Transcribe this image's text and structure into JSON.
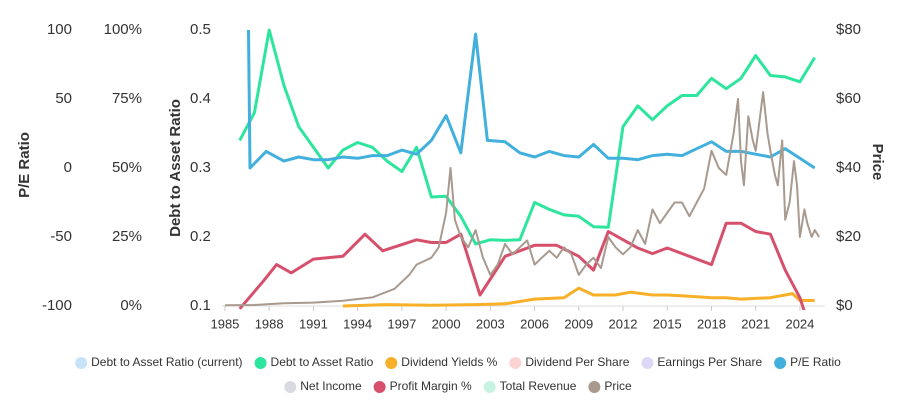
{
  "chart_data": {
    "type": "line",
    "xlim": [
      1984.8,
      2025.7
    ],
    "xticks": [
      1985,
      1988,
      1991,
      1994,
      1997,
      2000,
      2003,
      2006,
      2009,
      2012,
      2015,
      2018,
      2021,
      2024
    ],
    "y_axes": {
      "pe": {
        "title": "P/E Ratio",
        "ylim": [
          -100,
          100
        ],
        "yticks": [
          -100,
          -50,
          0,
          50,
          100
        ]
      },
      "percent": {
        "ylim": [
          0,
          100
        ],
        "yticks": [
          {
            "value": 0,
            "label": "0%"
          },
          {
            "value": 25,
            "label": "25%"
          },
          {
            "value": 50,
            "label": "50%"
          },
          {
            "value": 75,
            "label": "75%"
          },
          {
            "value": 100,
            "label": "100%"
          }
        ]
      },
      "debt": {
        "title": "Debt to Asset Ratio",
        "ylim": [
          0.1,
          0.5
        ],
        "yticks": [
          0.1,
          0.2,
          0.3,
          0.4,
          0.5
        ]
      },
      "price": {
        "title": "Price",
        "ylim": [
          0,
          80
        ],
        "yticks": [
          {
            "value": 0,
            "label": "$0"
          },
          {
            "value": 20,
            "label": "$20"
          },
          {
            "value": 40,
            "label": "$40"
          },
          {
            "value": 60,
            "label": "$60"
          },
          {
            "value": 80,
            "label": "$80"
          }
        ]
      }
    },
    "series": [
      {
        "name": "Debt to Asset Ratio (current)",
        "color": "#c6e3f7",
        "hidden": true
      },
      {
        "name": "Debt to Asset Ratio",
        "color": "#2ee59d",
        "axis": "debt",
        "x": [
          1986,
          1987,
          1988,
          1989,
          1990,
          1991,
          1992,
          1993,
          1994,
          1995,
          1996,
          1997,
          1998,
          1999,
          2000,
          2001,
          2002,
          2003,
          2004,
          2005,
          2006,
          2007,
          2008,
          2009,
          2010,
          2011,
          2012,
          2013,
          2014,
          2015,
          2016,
          2017,
          2018,
          2019,
          2020,
          2021,
          2022,
          2023,
          2024,
          2025
        ],
        "values": [
          0.34,
          0.38,
          0.5,
          0.42,
          0.36,
          0.33,
          0.3,
          0.326,
          0.337,
          0.33,
          0.31,
          0.295,
          0.33,
          0.258,
          0.259,
          0.23,
          0.19,
          0.196,
          0.195,
          0.196,
          0.25,
          0.24,
          0.232,
          0.23,
          0.215,
          0.214,
          0.36,
          0.39,
          0.37,
          0.39,
          0.405,
          0.405,
          0.43,
          0.415,
          0.43,
          0.463,
          0.434,
          0.432,
          0.425,
          0.46
        ]
      },
      {
        "name": "Dividend Yields %",
        "color": "#f7b027",
        "axis": "percent",
        "x": [
          1993,
          1996,
          1999,
          2002,
          2004,
          2006,
          2008,
          2009,
          2010,
          2011.5,
          2012.5,
          2014,
          2015,
          2016.5,
          2018,
          2019,
          2020,
          2022,
          2023.5,
          2024,
          2025
        ],
        "values": [
          0,
          0.5,
          0.3,
          0.5,
          0.8,
          2.5,
          3,
          6.5,
          4,
          4,
          5,
          4,
          4,
          3.5,
          3,
          3,
          2.5,
          3,
          4.5,
          2,
          2
        ]
      },
      {
        "name": "Dividend Per Share",
        "color": "#fbd3d3",
        "hidden": true
      },
      {
        "name": "Earnings Per Share",
        "color": "#ddd8f3",
        "hidden": true
      },
      {
        "name": "P/E Ratio",
        "color": "#42b0dd",
        "axis": "pe",
        "x": [
          1986.6,
          1986.7,
          1987.8,
          1989,
          1990,
          1991,
          1992,
          1993,
          1994,
          1995,
          1996,
          1997,
          1998,
          1999,
          2000,
          2001,
          2002,
          2002.8,
          2004,
          2005,
          2006,
          2007,
          2008,
          2009,
          2010,
          2011,
          2012,
          2013,
          2014,
          2015,
          2016,
          2017,
          2018,
          2019,
          2020,
          2021,
          2022,
          2023,
          2024,
          2025
        ],
        "values": [
          100,
          0,
          12,
          5,
          8,
          6,
          6,
          8,
          7,
          9,
          9,
          13,
          10,
          20,
          38,
          11,
          97,
          20,
          19,
          11,
          8,
          12,
          9,
          8,
          17,
          7,
          7,
          6,
          9,
          10,
          9,
          14,
          19,
          12,
          12,
          10,
          8,
          14,
          7,
          0
        ]
      },
      {
        "name": "Net Income",
        "color": "#d7dbe0",
        "hidden": true
      },
      {
        "name": "Profit Margin %",
        "color": "#d6506c",
        "axis": "percent",
        "x": [
          1986,
          1987.6,
          1988.5,
          1989.5,
          1991,
          1993,
          1994.5,
          1995.7,
          1998,
          1999,
          2000,
          2001,
          2002.3,
          2004,
          2006,
          2007.5,
          2009,
          2010,
          2011,
          2013,
          2014,
          2015,
          2016.5,
          2018,
          2019,
          2020,
          2021,
          2022,
          2023,
          2024,
          2024.3
        ],
        "values": [
          -1,
          9,
          15,
          12,
          17,
          18,
          26,
          20,
          24,
          23,
          23,
          26,
          4,
          18,
          22,
          22,
          18,
          13,
          27,
          21,
          19,
          21,
          18,
          15,
          30,
          30,
          27,
          26,
          13,
          3,
          -2
        ]
      },
      {
        "name": "Total Revenue",
        "color": "#c8f3e3",
        "hidden": true
      },
      {
        "name": "Price",
        "color": "#a89a8e",
        "axis": "price",
        "x": [
          1985,
          1987,
          1989,
          1991,
          1993,
          1995,
          1996.5,
          1997.5,
          1998,
          1999,
          1999.5,
          2000,
          2000.3,
          2000.6,
          2001,
          2001.5,
          2002,
          2002.5,
          2003,
          2003.5,
          2004,
          2004.5,
          2005,
          2005.5,
          2006,
          2006.5,
          2007,
          2007.5,
          2008,
          2008.5,
          2009,
          2009.5,
          2010,
          2010.5,
          2011,
          2011.5,
          2012,
          2012.5,
          2013,
          2013.5,
          2014,
          2014.5,
          2015,
          2015.5,
          2016,
          2016.5,
          2017,
          2017.5,
          2018,
          2018.5,
          2019,
          2019.5,
          2019.8,
          2020,
          2020.2,
          2020.5,
          2020.8,
          2021,
          2021.3,
          2021.5,
          2021.8,
          2022,
          2022.3,
          2022.5,
          2022.8,
          2023,
          2023.3,
          2023.6,
          2023.8,
          2024,
          2024.3,
          2024.5,
          2024.8,
          2025,
          2025.3
        ],
        "values": [
          0.2,
          0.3,
          0.8,
          1,
          1.5,
          2.5,
          5,
          9,
          12,
          14,
          17,
          27,
          40,
          25,
          20,
          17,
          22,
          14,
          9,
          12,
          18,
          15,
          17,
          19,
          12,
          14,
          16,
          14,
          17,
          15,
          9,
          12,
          14,
          11,
          20,
          17,
          15,
          17,
          22,
          18,
          28,
          24,
          27,
          30,
          30,
          26,
          30,
          34,
          45,
          40,
          38,
          50,
          60,
          42,
          35,
          55,
          48,
          45,
          55,
          62,
          50,
          45,
          38,
          35,
          48,
          25,
          30,
          42,
          35,
          20,
          28,
          24,
          20,
          22,
          20
        ]
      }
    ]
  }
}
